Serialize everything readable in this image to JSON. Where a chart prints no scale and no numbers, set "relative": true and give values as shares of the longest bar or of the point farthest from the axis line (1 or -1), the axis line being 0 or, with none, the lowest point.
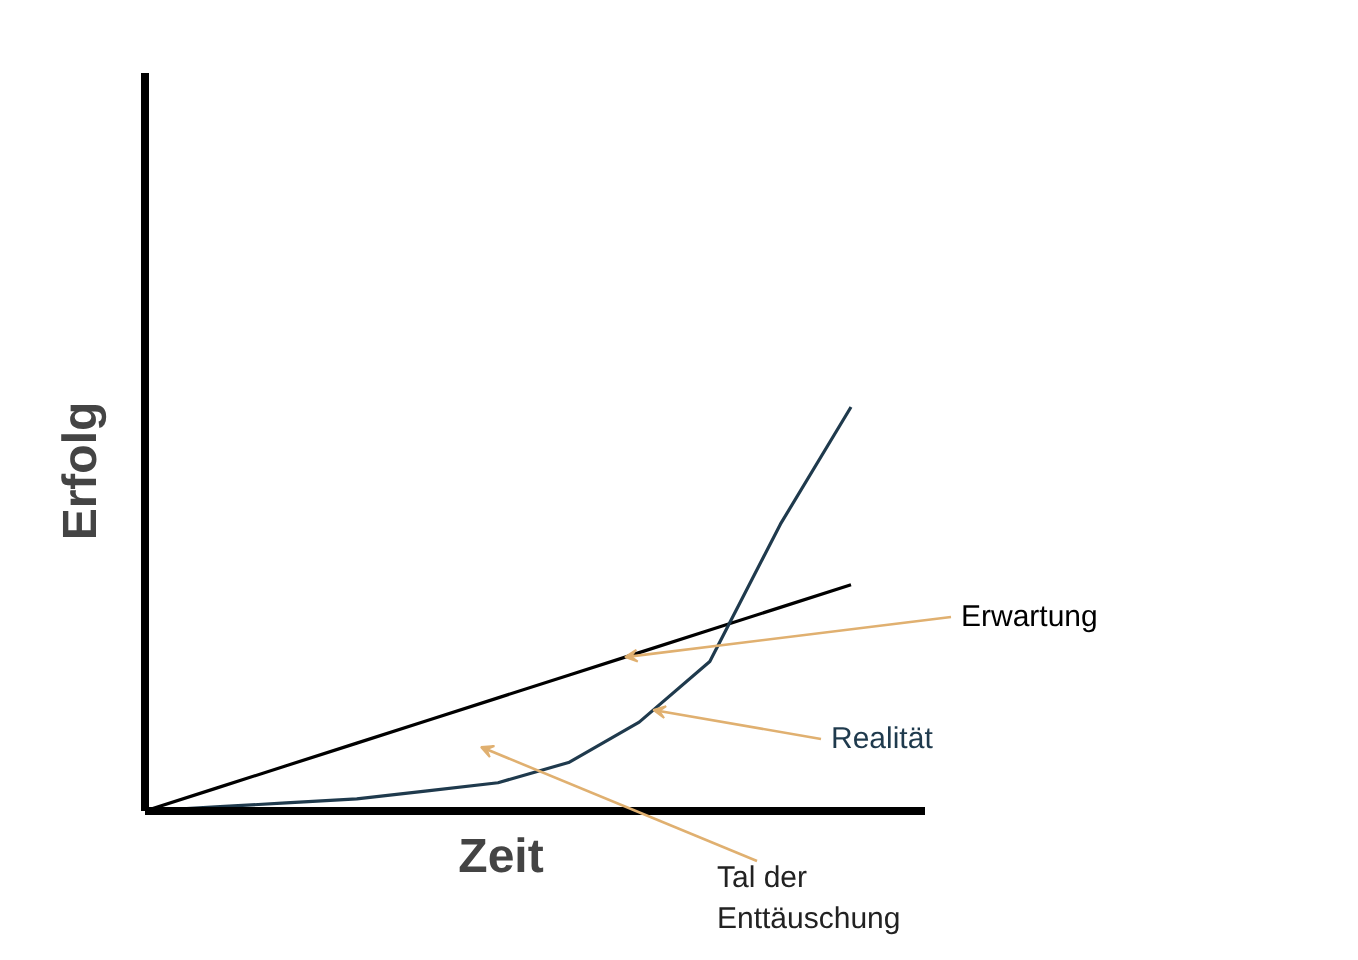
{
  "chart_data": {
    "type": "line",
    "relative": true,
    "xlabel": "Zeit",
    "ylabel": "Erfolg",
    "categories": [
      null,
      null,
      null,
      null,
      null,
      null,
      null,
      null,
      null,
      null,
      null
    ],
    "series": [
      {
        "name": "Erwartung",
        "color": "#000000",
        "values": [
          0,
          0.056,
          0.112,
          0.168,
          0.224,
          0.28,
          0.336,
          0.392,
          0.448,
          0.504,
          0.56
        ]
      },
      {
        "name": "Realität",
        "color": "#1f3a4d",
        "values": [
          0,
          0.01,
          0.02,
          0.03,
          0.05,
          0.07,
          0.12,
          0.22,
          0.37,
          0.71,
          1.0
        ]
      }
    ],
    "annotations": [
      "Tal der\nEnttäuschung"
    ]
  }
}
